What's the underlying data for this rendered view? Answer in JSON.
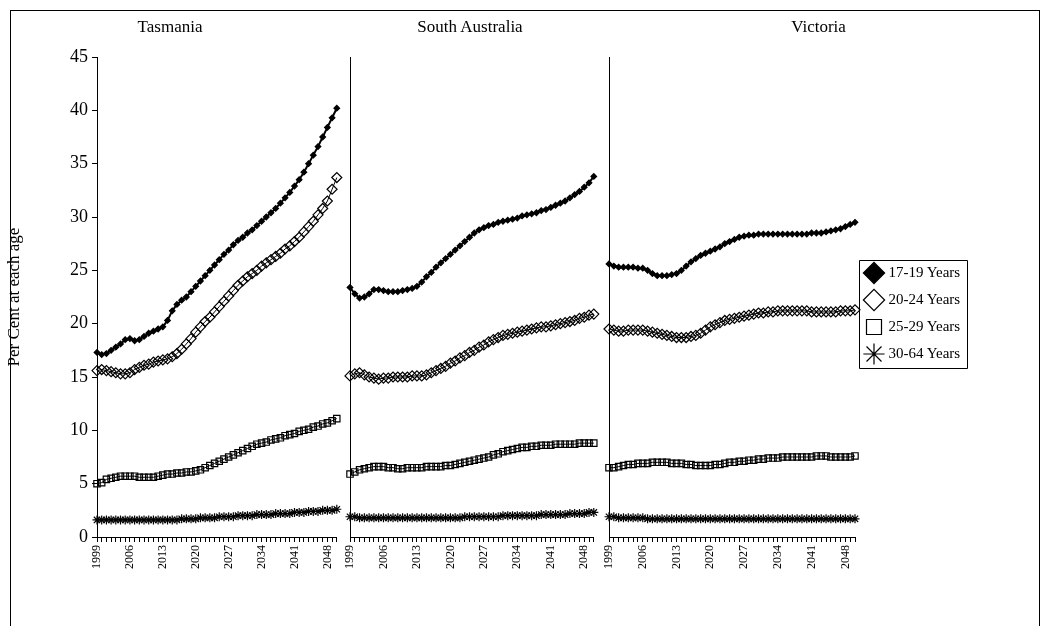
{
  "chart_data": [
    {
      "type": "line",
      "title": "Tasmania",
      "ylabel": "Per Cent at each age",
      "ylim": [
        0,
        45
      ],
      "yticks": [
        0,
        5,
        10,
        15,
        20,
        25,
        30,
        35,
        40,
        45
      ],
      "grid": false,
      "categories": [
        "1999",
        null,
        null,
        null,
        null,
        null,
        null,
        "2006",
        null,
        null,
        null,
        null,
        null,
        null,
        "2013",
        null,
        null,
        null,
        null,
        null,
        null,
        "2020",
        null,
        null,
        null,
        null,
        null,
        null,
        "2027",
        null,
        null,
        null,
        null,
        null,
        null,
        "2034",
        null,
        null,
        null,
        null,
        null,
        null,
        "2041",
        null,
        null,
        null,
        null,
        null,
        null,
        "2048",
        null,
        null
      ],
      "series": [
        {
          "color": "#000000",
          "marker": "diamond",
          "values": [
            17.3,
            17.1,
            17.2,
            17.5,
            17.8,
            18.1,
            18.5,
            18.6,
            18.4,
            18.5,
            18.8,
            19.1,
            19.3,
            19.5,
            19.7,
            20.3,
            21.2,
            21.8,
            22.2,
            22.5,
            23.0,
            23.5,
            24.0,
            24.5,
            25.0,
            25.5,
            26.0,
            26.5,
            26.9,
            27.4,
            27.8,
            28.1,
            28.5,
            28.8,
            29.2,
            29.6,
            30.0,
            30.4,
            30.8,
            31.3,
            31.8,
            32.3,
            32.9,
            33.5,
            34.2,
            35.0,
            35.8,
            36.6,
            37.5,
            38.4,
            39.3,
            40.2
          ]
        },
        {
          "color": "#000000",
          "marker": "diamond",
          "values": [
            15.6,
            15.7,
            15.6,
            15.5,
            15.4,
            15.3,
            15.3,
            15.4,
            15.7,
            15.9,
            16.1,
            16.2,
            16.4,
            16.5,
            16.6,
            16.7,
            16.9,
            17.2,
            17.6,
            18.1,
            18.6,
            19.2,
            19.7,
            20.2,
            20.6,
            21.1,
            21.6,
            22.1,
            22.6,
            23.1,
            23.6,
            24.0,
            24.4,
            24.7,
            25.0,
            25.4,
            25.7,
            26.0,
            26.3,
            26.6,
            27.0,
            27.3,
            27.7,
            28.1,
            28.6,
            29.1,
            29.6,
            30.2,
            30.8,
            31.5,
            32.6,
            33.7
          ]
        },
        {
          "color": "#000000",
          "marker": "square",
          "values": [
            5.0,
            5.1,
            5.4,
            5.5,
            5.6,
            5.7,
            5.7,
            5.7,
            5.7,
            5.6,
            5.6,
            5.6,
            5.6,
            5.7,
            5.8,
            5.9,
            5.9,
            6.0,
            6.0,
            6.1,
            6.1,
            6.2,
            6.3,
            6.5,
            6.7,
            6.9,
            7.1,
            7.3,
            7.5,
            7.7,
            7.9,
            8.1,
            8.3,
            8.5,
            8.7,
            8.8,
            8.9,
            9.1,
            9.2,
            9.3,
            9.5,
            9.6,
            9.7,
            9.9,
            10.0,
            10.1,
            10.3,
            10.4,
            10.6,
            10.7,
            10.9,
            11.1
          ]
        },
        {
          "color": "#000000",
          "marker": "cross",
          "values": [
            1.6,
            1.6,
            1.6,
            1.6,
            1.6,
            1.6,
            1.6,
            1.6,
            1.6,
            1.6,
            1.6,
            1.6,
            1.6,
            1.6,
            1.6,
            1.6,
            1.6,
            1.6,
            1.7,
            1.7,
            1.7,
            1.7,
            1.8,
            1.8,
            1.8,
            1.8,
            1.9,
            1.9,
            1.9,
            1.9,
            2.0,
            2.0,
            2.0,
            2.0,
            2.1,
            2.1,
            2.1,
            2.1,
            2.2,
            2.2,
            2.2,
            2.2,
            2.3,
            2.3,
            2.3,
            2.4,
            2.4,
            2.4,
            2.5,
            2.5,
            2.5,
            2.6
          ]
        }
      ]
    },
    {
      "type": "line",
      "title": "South Australia",
      "ylim": [
        0,
        45
      ],
      "grid": false,
      "tick_labels": "x",
      "categories": [
        "1999",
        null,
        null,
        null,
        null,
        null,
        null,
        "2006",
        null,
        null,
        null,
        null,
        null,
        null,
        "2013",
        null,
        null,
        null,
        null,
        null,
        null,
        "2020",
        null,
        null,
        null,
        null,
        null,
        null,
        "2027",
        null,
        null,
        null,
        null,
        null,
        null,
        "2034",
        null,
        null,
        null,
        null,
        null,
        null,
        "2041",
        null,
        null,
        null,
        null,
        null,
        null,
        "2048",
        null,
        null
      ],
      "series": [
        {
          "color": "#000000",
          "marker": "diamond",
          "values": [
            23.4,
            22.8,
            22.4,
            22.5,
            22.8,
            23.2,
            23.2,
            23.1,
            23.0,
            23.0,
            23.0,
            23.1,
            23.2,
            23.3,
            23.5,
            23.9,
            24.4,
            24.8,
            25.3,
            25.7,
            26.1,
            26.5,
            26.9,
            27.3,
            27.7,
            28.1,
            28.5,
            28.8,
            29.0,
            29.2,
            29.3,
            29.5,
            29.6,
            29.7,
            29.8,
            29.9,
            30.1,
            30.2,
            30.3,
            30.4,
            30.6,
            30.7,
            30.9,
            31.1,
            31.3,
            31.5,
            31.8,
            32.1,
            32.4,
            32.8,
            33.2,
            33.8
          ]
        },
        {
          "color": "#000000",
          "marker": "diamond",
          "values": [
            15.1,
            15.3,
            15.4,
            15.2,
            15.0,
            14.9,
            14.8,
            14.9,
            14.9,
            15.0,
            15.0,
            15.0,
            15.0,
            15.1,
            15.1,
            15.1,
            15.2,
            15.4,
            15.6,
            15.8,
            16.0,
            16.3,
            16.5,
            16.8,
            17.0,
            17.3,
            17.5,
            17.8,
            18.0,
            18.3,
            18.5,
            18.7,
            18.9,
            19.0,
            19.1,
            19.2,
            19.3,
            19.4,
            19.5,
            19.6,
            19.7,
            19.7,
            19.8,
            19.9,
            20.0,
            20.1,
            20.2,
            20.3,
            20.5,
            20.6,
            20.8,
            20.9
          ]
        },
        {
          "color": "#000000",
          "marker": "square",
          "values": [
            5.9,
            6.1,
            6.3,
            6.4,
            6.5,
            6.6,
            6.6,
            6.6,
            6.5,
            6.5,
            6.4,
            6.4,
            6.5,
            6.5,
            6.5,
            6.5,
            6.6,
            6.6,
            6.6,
            6.6,
            6.7,
            6.7,
            6.8,
            6.9,
            7.0,
            7.1,
            7.2,
            7.3,
            7.4,
            7.5,
            7.7,
            7.8,
            8.0,
            8.1,
            8.2,
            8.3,
            8.4,
            8.4,
            8.5,
            8.5,
            8.6,
            8.6,
            8.6,
            8.7,
            8.7,
            8.7,
            8.7,
            8.7,
            8.8,
            8.8,
            8.8,
            8.8
          ]
        },
        {
          "color": "#000000",
          "marker": "cross",
          "values": [
            1.9,
            1.9,
            1.8,
            1.8,
            1.8,
            1.8,
            1.8,
            1.8,
            1.8,
            1.8,
            1.8,
            1.8,
            1.8,
            1.8,
            1.8,
            1.8,
            1.8,
            1.8,
            1.8,
            1.8,
            1.8,
            1.8,
            1.8,
            1.8,
            1.9,
            1.9,
            1.9,
            1.9,
            1.9,
            1.9,
            1.9,
            1.9,
            2.0,
            2.0,
            2.0,
            2.0,
            2.0,
            2.0,
            2.0,
            2.0,
            2.1,
            2.1,
            2.1,
            2.1,
            2.1,
            2.1,
            2.2,
            2.2,
            2.2,
            2.2,
            2.3,
            2.3
          ]
        }
      ]
    },
    {
      "type": "line",
      "title": "Victoria",
      "ylim": [
        0,
        45
      ],
      "grid": false,
      "tick_labels": "x",
      "legend": "right",
      "categories": [
        "1999",
        null,
        null,
        null,
        null,
        null,
        null,
        "2006",
        null,
        null,
        null,
        null,
        null,
        null,
        "2013",
        null,
        null,
        null,
        null,
        null,
        null,
        "2020",
        null,
        null,
        null,
        null,
        null,
        null,
        "2027",
        null,
        null,
        null,
        null,
        null,
        null,
        "2034",
        null,
        null,
        null,
        null,
        null,
        null,
        "2041",
        null,
        null,
        null,
        null,
        null,
        null,
        "2048",
        null,
        null
      ],
      "series": [
        {
          "name": "17-19 Years",
          "color": "#000000",
          "marker": "diamond",
          "values": [
            25.6,
            25.4,
            25.3,
            25.3,
            25.3,
            25.3,
            25.2,
            25.2,
            25.0,
            24.7,
            24.5,
            24.5,
            24.5,
            24.6,
            24.7,
            25.0,
            25.4,
            25.8,
            26.1,
            26.4,
            26.6,
            26.8,
            27.0,
            27.2,
            27.5,
            27.7,
            27.9,
            28.1,
            28.2,
            28.3,
            28.3,
            28.4,
            28.4,
            28.4,
            28.4,
            28.4,
            28.4,
            28.4,
            28.4,
            28.4,
            28.4,
            28.4,
            28.5,
            28.5,
            28.5,
            28.6,
            28.7,
            28.8,
            28.9,
            29.1,
            29.3,
            29.5
          ]
        },
        {
          "name": "20-24 Years",
          "color": "#000000",
          "marker": "diamond",
          "values": [
            19.5,
            19.4,
            19.3,
            19.3,
            19.4,
            19.4,
            19.4,
            19.4,
            19.3,
            19.2,
            19.1,
            19.0,
            18.9,
            18.8,
            18.7,
            18.7,
            18.7,
            18.8,
            18.9,
            19.1,
            19.4,
            19.7,
            19.9,
            20.1,
            20.3,
            20.4,
            20.5,
            20.6,
            20.7,
            20.8,
            20.9,
            21.0,
            21.0,
            21.1,
            21.1,
            21.2,
            21.2,
            21.2,
            21.2,
            21.2,
            21.2,
            21.2,
            21.1,
            21.1,
            21.1,
            21.1,
            21.1,
            21.1,
            21.2,
            21.2,
            21.2,
            21.3
          ]
        },
        {
          "name": "25-29 Years",
          "color": "#000000",
          "marker": "square",
          "values": [
            6.5,
            6.5,
            6.6,
            6.7,
            6.8,
            6.8,
            6.9,
            6.9,
            6.9,
            7.0,
            7.0,
            7.0,
            7.0,
            6.9,
            6.9,
            6.9,
            6.8,
            6.8,
            6.7,
            6.7,
            6.7,
            6.7,
            6.8,
            6.8,
            6.9,
            7.0,
            7.0,
            7.1,
            7.1,
            7.2,
            7.2,
            7.3,
            7.3,
            7.4,
            7.4,
            7.4,
            7.5,
            7.5,
            7.5,
            7.5,
            7.5,
            7.5,
            7.5,
            7.6,
            7.6,
            7.6,
            7.5,
            7.5,
            7.5,
            7.5,
            7.5,
            7.6
          ]
        },
        {
          "name": "30-64 Years",
          "color": "#000000",
          "marker": "cross",
          "values": [
            1.9,
            1.9,
            1.8,
            1.8,
            1.8,
            1.8,
            1.8,
            1.8,
            1.7,
            1.7,
            1.7,
            1.7,
            1.7,
            1.7,
            1.7,
            1.7,
            1.7,
            1.7,
            1.7,
            1.7,
            1.7,
            1.7,
            1.7,
            1.7,
            1.7,
            1.7,
            1.7,
            1.7,
            1.7,
            1.7,
            1.7,
            1.7,
            1.7,
            1.7,
            1.7,
            1.7,
            1.7,
            1.7,
            1.7,
            1.7,
            1.7,
            1.7,
            1.7,
            1.7,
            1.7,
            1.7,
            1.7,
            1.7,
            1.7,
            1.7,
            1.7,
            1.7
          ]
        }
      ]
    }
  ]
}
